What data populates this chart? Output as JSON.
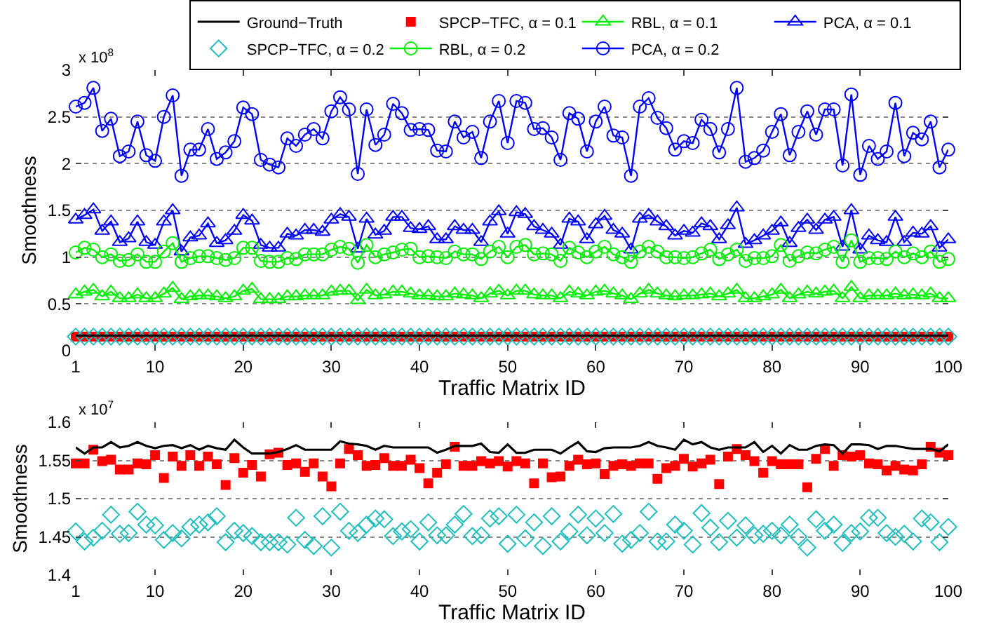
{
  "chart_data": [
    {
      "type": "line",
      "xlabel": "Traffic Matrix ID",
      "ylabel": "Smoothness",
      "annotations": [
        "x 10$^{8}$"
      ],
      "grid": "y",
      "legend": "top",
      "x": [
        1,
        2,
        3,
        4,
        5,
        6,
        7,
        8,
        9,
        10,
        11,
        12,
        13,
        14,
        15,
        16,
        17,
        18,
        19,
        20,
        21,
        22,
        23,
        24,
        25,
        26,
        27,
        28,
        29,
        30,
        31,
        32,
        33,
        34,
        35,
        36,
        37,
        38,
        39,
        40,
        41,
        42,
        43,
        44,
        45,
        46,
        47,
        48,
        49,
        50,
        51,
        52,
        53,
        54,
        55,
        56,
        57,
        58,
        59,
        60,
        61,
        62,
        63,
        64,
        65,
        66,
        67,
        68,
        69,
        70,
        71,
        72,
        73,
        74,
        75,
        76,
        77,
        78,
        79,
        80,
        81,
        82,
        83,
        84,
        85,
        86,
        87,
        88,
        89,
        90,
        91,
        92,
        93,
        94,
        95,
        96,
        97,
        98,
        99,
        100
      ],
      "xlim": [
        1,
        100
      ],
      "xticks": [
        1,
        10,
        20,
        30,
        40,
        50,
        60,
        70,
        80,
        90,
        100
      ],
      "ylim": [
        0,
        3
      ],
      "yticks": [
        0,
        0.5,
        1,
        1.5,
        2,
        2.5,
        3
      ],
      "series": [
        {
          "name": "Ground−Truth",
          "type": "line",
          "marker": "none",
          "color": "#000000",
          "values": [
            0.16,
            0.16,
            0.16,
            0.16,
            0.16,
            0.16,
            0.16,
            0.16,
            0.16,
            0.16,
            0.16,
            0.16,
            0.16,
            0.16,
            0.16,
            0.16,
            0.16,
            0.16,
            0.16,
            0.16,
            0.16,
            0.16,
            0.16,
            0.16,
            0.16,
            0.16,
            0.16,
            0.16,
            0.16,
            0.16,
            0.16,
            0.16,
            0.16,
            0.16,
            0.16,
            0.16,
            0.16,
            0.16,
            0.16,
            0.16,
            0.16,
            0.16,
            0.16,
            0.16,
            0.16,
            0.16,
            0.16,
            0.16,
            0.16,
            0.16,
            0.16,
            0.16,
            0.16,
            0.16,
            0.16,
            0.16,
            0.16,
            0.16,
            0.16,
            0.16,
            0.16,
            0.16,
            0.16,
            0.16,
            0.16,
            0.16,
            0.16,
            0.16,
            0.16,
            0.16,
            0.16,
            0.16,
            0.16,
            0.16,
            0.16,
            0.16,
            0.16,
            0.16,
            0.16,
            0.16,
            0.16,
            0.16,
            0.16,
            0.16,
            0.16,
            0.16,
            0.16,
            0.16,
            0.16,
            0.16,
            0.16,
            0.16,
            0.16,
            0.16,
            0.16,
            0.16,
            0.16,
            0.16,
            0.16,
            0.16
          ]
        },
        {
          "name": "SPCP−TFC, α = 0.1",
          "type": "scatter",
          "marker": "square",
          "color": "#ff0000",
          "values": [
            0.15,
            0.15,
            0.15,
            0.15,
            0.15,
            0.15,
            0.15,
            0.15,
            0.15,
            0.15,
            0.15,
            0.15,
            0.15,
            0.15,
            0.15,
            0.15,
            0.15,
            0.15,
            0.15,
            0.15,
            0.15,
            0.15,
            0.15,
            0.15,
            0.15,
            0.15,
            0.15,
            0.15,
            0.15,
            0.15,
            0.15,
            0.15,
            0.15,
            0.15,
            0.15,
            0.15,
            0.15,
            0.15,
            0.15,
            0.15,
            0.15,
            0.15,
            0.15,
            0.15,
            0.15,
            0.15,
            0.15,
            0.15,
            0.15,
            0.15,
            0.15,
            0.15,
            0.15,
            0.15,
            0.15,
            0.15,
            0.15,
            0.15,
            0.15,
            0.15,
            0.15,
            0.15,
            0.15,
            0.15,
            0.15,
            0.15,
            0.15,
            0.15,
            0.15,
            0.15,
            0.15,
            0.15,
            0.15,
            0.15,
            0.15,
            0.15,
            0.15,
            0.15,
            0.15,
            0.15,
            0.15,
            0.15,
            0.15,
            0.15,
            0.15,
            0.15,
            0.15,
            0.15,
            0.15,
            0.15,
            0.15,
            0.15,
            0.15,
            0.15,
            0.15,
            0.15,
            0.15,
            0.15,
            0.15,
            0.15
          ]
        },
        {
          "name": "RBL, α = 0.1",
          "type": "line",
          "marker": "triangle",
          "color": "#00ee00",
          "values": [
            0.6,
            0.63,
            0.65,
            0.58,
            0.63,
            0.56,
            0.56,
            0.6,
            0.56,
            0.56,
            0.61,
            0.67,
            0.55,
            0.58,
            0.59,
            0.59,
            0.58,
            0.56,
            0.58,
            0.64,
            0.66,
            0.55,
            0.55,
            0.55,
            0.58,
            0.58,
            0.59,
            0.59,
            0.59,
            0.63,
            0.64,
            0.64,
            0.54,
            0.65,
            0.59,
            0.6,
            0.63,
            0.63,
            0.61,
            0.59,
            0.59,
            0.58,
            0.58,
            0.61,
            0.6,
            0.59,
            0.56,
            0.61,
            0.64,
            0.59,
            0.64,
            0.64,
            0.6,
            0.59,
            0.59,
            0.56,
            0.63,
            0.61,
            0.59,
            0.63,
            0.64,
            0.61,
            0.59,
            0.55,
            0.61,
            0.65,
            0.61,
            0.59,
            0.58,
            0.59,
            0.59,
            0.6,
            0.61,
            0.58,
            0.61,
            0.65,
            0.56,
            0.56,
            0.58,
            0.6,
            0.65,
            0.56,
            0.6,
            0.63,
            0.61,
            0.63,
            0.64,
            0.56,
            0.68,
            0.56,
            0.59,
            0.59,
            0.59,
            0.61,
            0.59,
            0.6,
            0.59,
            0.61,
            0.56,
            0.56
          ]
        },
        {
          "name": "PCA, α = 0.1",
          "type": "line",
          "marker": "triangle",
          "color": "#0000ff",
          "values": [
            1.4,
            1.45,
            1.51,
            1.28,
            1.38,
            1.16,
            1.2,
            1.38,
            1.16,
            1.13,
            1.38,
            1.5,
            1.06,
            1.21,
            1.23,
            1.36,
            1.15,
            1.18,
            1.28,
            1.45,
            1.39,
            1.13,
            1.1,
            1.1,
            1.25,
            1.23,
            1.29,
            1.29,
            1.27,
            1.4,
            1.46,
            1.43,
            1.09,
            1.41,
            1.24,
            1.28,
            1.43,
            1.43,
            1.31,
            1.3,
            1.33,
            1.19,
            1.19,
            1.33,
            1.29,
            1.29,
            1.16,
            1.38,
            1.49,
            1.25,
            1.48,
            1.46,
            1.33,
            1.29,
            1.25,
            1.13,
            1.41,
            1.38,
            1.19,
            1.35,
            1.44,
            1.29,
            1.25,
            1.08,
            1.41,
            1.45,
            1.38,
            1.33,
            1.23,
            1.28,
            1.26,
            1.36,
            1.33,
            1.19,
            1.34,
            1.53,
            1.14,
            1.18,
            1.23,
            1.28,
            1.37,
            1.15,
            1.31,
            1.4,
            1.29,
            1.4,
            1.43,
            1.11,
            1.5,
            1.08,
            1.23,
            1.18,
            1.16,
            1.43,
            1.16,
            1.26,
            1.25,
            1.33,
            1.1,
            1.19
          ]
        },
        {
          "name": "SPCP−TFC, α = 0.2",
          "type": "scatter",
          "marker": "diamond",
          "color": "#1fbfbf",
          "values": [
            0.15,
            0.15,
            0.15,
            0.15,
            0.15,
            0.15,
            0.15,
            0.15,
            0.15,
            0.15,
            0.15,
            0.15,
            0.15,
            0.15,
            0.15,
            0.15,
            0.15,
            0.15,
            0.15,
            0.15,
            0.15,
            0.15,
            0.15,
            0.15,
            0.15,
            0.15,
            0.15,
            0.15,
            0.15,
            0.15,
            0.15,
            0.15,
            0.15,
            0.15,
            0.15,
            0.15,
            0.15,
            0.15,
            0.15,
            0.15,
            0.15,
            0.15,
            0.15,
            0.15,
            0.15,
            0.15,
            0.15,
            0.15,
            0.15,
            0.15,
            0.15,
            0.15,
            0.15,
            0.15,
            0.15,
            0.15,
            0.15,
            0.15,
            0.15,
            0.15,
            0.15,
            0.15,
            0.15,
            0.15,
            0.15,
            0.15,
            0.15,
            0.15,
            0.15,
            0.15,
            0.15,
            0.15,
            0.15,
            0.15,
            0.15,
            0.15,
            0.15,
            0.15,
            0.15,
            0.15,
            0.15,
            0.15,
            0.15,
            0.15,
            0.15,
            0.15,
            0.15,
            0.15,
            0.15,
            0.15,
            0.15,
            0.15,
            0.15,
            0.15,
            0.15,
            0.15,
            0.15,
            0.15,
            0.15,
            0.15
          ]
        },
        {
          "name": "RBL, α = 0.2",
          "type": "line",
          "marker": "circle",
          "color": "#00ee00",
          "values": [
            1.05,
            1.1,
            1.08,
            1.0,
            1.03,
            0.96,
            0.97,
            1.03,
            0.95,
            0.95,
            1.06,
            1.15,
            0.95,
            0.99,
            1.01,
            1.01,
            0.99,
            0.97,
            0.99,
            1.1,
            1.1,
            0.96,
            0.95,
            0.95,
            0.99,
            0.98,
            1.03,
            1.03,
            1.03,
            1.08,
            1.11,
            1.09,
            0.94,
            1.13,
            1.0,
            1.03,
            1.05,
            1.08,
            1.09,
            1.0,
            1.01,
            1.0,
            0.99,
            1.06,
            1.03,
            1.03,
            0.98,
            1.06,
            1.11,
            1.0,
            1.11,
            1.13,
            1.03,
            1.04,
            1.03,
            0.96,
            1.1,
            1.05,
            1.0,
            1.06,
            1.11,
            1.03,
            1.0,
            0.95,
            1.06,
            1.11,
            1.06,
            1.0,
            1.0,
            0.99,
            1.0,
            1.04,
            1.08,
            0.98,
            1.03,
            1.08,
            0.96,
            0.99,
            0.99,
            1.01,
            1.13,
            0.96,
            1.01,
            1.05,
            1.04,
            1.08,
            1.11,
            0.95,
            1.18,
            0.95,
            0.99,
            0.99,
            0.98,
            1.06,
            1.0,
            1.04,
            1.0,
            1.06,
            0.95,
            0.98
          ]
        },
        {
          "name": "PCA, α = 0.2",
          "type": "line",
          "marker": "circle",
          "color": "#0000ff",
          "values": [
            2.61,
            2.65,
            2.81,
            2.35,
            2.48,
            2.08,
            2.13,
            2.45,
            2.09,
            2.03,
            2.5,
            2.73,
            1.87,
            2.15,
            2.15,
            2.37,
            2.05,
            2.12,
            2.24,
            2.6,
            2.53,
            2.04,
            1.99,
            1.96,
            2.27,
            2.19,
            2.31,
            2.37,
            2.27,
            2.56,
            2.71,
            2.58,
            1.89,
            2.58,
            2.2,
            2.31,
            2.64,
            2.54,
            2.36,
            2.37,
            2.36,
            2.14,
            2.13,
            2.45,
            2.28,
            2.34,
            2.06,
            2.45,
            2.67,
            2.22,
            2.67,
            2.65,
            2.37,
            2.38,
            2.28,
            2.04,
            2.54,
            2.48,
            2.13,
            2.45,
            2.61,
            2.3,
            2.28,
            1.87,
            2.61,
            2.7,
            2.49,
            2.38,
            2.15,
            2.24,
            2.22,
            2.47,
            2.37,
            2.12,
            2.37,
            2.81,
            2.02,
            2.06,
            2.14,
            2.34,
            2.53,
            2.09,
            2.34,
            2.56,
            2.31,
            2.58,
            2.58,
            1.98,
            2.74,
            1.88,
            2.19,
            2.05,
            2.13,
            2.65,
            2.08,
            2.33,
            2.26,
            2.45,
            1.96,
            2.15
          ]
        }
      ]
    },
    {
      "type": "line",
      "xlabel": "Traffic Matrix ID",
      "ylabel": "Smoothness",
      "annotations": [
        "x 10$^{7}$"
      ],
      "grid": "y",
      "legend": false,
      "x": [
        1,
        2,
        3,
        4,
        5,
        6,
        7,
        8,
        9,
        10,
        11,
        12,
        13,
        14,
        15,
        16,
        17,
        18,
        19,
        20,
        21,
        22,
        23,
        24,
        25,
        26,
        27,
        28,
        29,
        30,
        31,
        32,
        33,
        34,
        35,
        36,
        37,
        38,
        39,
        40,
        41,
        42,
        43,
        44,
        45,
        46,
        47,
        48,
        49,
        50,
        51,
        52,
        53,
        54,
        55,
        56,
        57,
        58,
        59,
        60,
        61,
        62,
        63,
        64,
        65,
        66,
        67,
        68,
        69,
        70,
        71,
        72,
        73,
        74,
        75,
        76,
        77,
        78,
        79,
        80,
        81,
        82,
        83,
        84,
        85,
        86,
        87,
        88,
        89,
        90,
        91,
        92,
        93,
        94,
        95,
        96,
        97,
        98,
        99,
        100
      ],
      "xlim": [
        1,
        100
      ],
      "xticks": [
        1,
        10,
        20,
        30,
        40,
        50,
        60,
        70,
        80,
        90,
        100
      ],
      "ylim": [
        1.4,
        1.6
      ],
      "yticks": [
        1.4,
        1.45,
        1.5,
        1.55,
        1.6
      ],
      "series": [
        {
          "type": "line",
          "marker": "none",
          "color": "#000000",
          "values": [
            1.567,
            1.559,
            1.567,
            1.567,
            1.574,
            1.567,
            1.569,
            1.574,
            1.569,
            1.566,
            1.569,
            1.57,
            1.566,
            1.57,
            1.564,
            1.569,
            1.566,
            1.564,
            1.577,
            1.567,
            1.559,
            1.559,
            1.559,
            1.561,
            1.565,
            1.57,
            1.564,
            1.564,
            1.564,
            1.564,
            1.575,
            1.572,
            1.571,
            1.569,
            1.564,
            1.569,
            1.567,
            1.567,
            1.567,
            1.567,
            1.567,
            1.56,
            1.564,
            1.569,
            1.569,
            1.569,
            1.572,
            1.561,
            1.56,
            1.571,
            1.56,
            1.56,
            1.564,
            1.564,
            1.564,
            1.559,
            1.567,
            1.574,
            1.562,
            1.561,
            1.566,
            1.567,
            1.567,
            1.567,
            1.569,
            1.574,
            1.569,
            1.567,
            1.564,
            1.577,
            1.571,
            1.574,
            1.567,
            1.564,
            1.567,
            1.567,
            1.567,
            1.574,
            1.561,
            1.569,
            1.559,
            1.57,
            1.564,
            1.564,
            1.569,
            1.571,
            1.57,
            1.559,
            1.571,
            1.571,
            1.57,
            1.565,
            1.569,
            1.569,
            1.567,
            1.565,
            1.565,
            1.565,
            1.562,
            1.571
          ]
        },
        {
          "type": "scatter",
          "marker": "square",
          "color": "#ff0000",
          "values": [
            1.546,
            1.546,
            1.564,
            1.549,
            1.551,
            1.538,
            1.538,
            1.546,
            1.545,
            1.557,
            1.527,
            1.555,
            1.543,
            1.557,
            1.543,
            1.555,
            1.545,
            1.518,
            1.553,
            1.534,
            1.544,
            1.529,
            1.558,
            1.56,
            1.544,
            1.546,
            1.535,
            1.546,
            1.529,
            1.516,
            1.546,
            1.565,
            1.557,
            1.543,
            1.544,
            1.553,
            1.543,
            1.543,
            1.551,
            1.54,
            1.52,
            1.534,
            1.545,
            1.568,
            1.543,
            1.543,
            1.549,
            1.546,
            1.549,
            1.542,
            1.549,
            1.546,
            1.52,
            1.546,
            1.528,
            1.529,
            1.543,
            1.551,
            1.545,
            1.546,
            1.532,
            1.543,
            1.545,
            1.543,
            1.546,
            1.546,
            1.526,
            1.54,
            1.543,
            1.552,
            1.542,
            1.546,
            1.551,
            1.519,
            1.555,
            1.565,
            1.557,
            1.549,
            1.534,
            1.549,
            1.545,
            1.545,
            1.545,
            1.515,
            1.552,
            1.565,
            1.543,
            1.557,
            1.555,
            1.557,
            1.546,
            1.545,
            1.537,
            1.543,
            1.538,
            1.537,
            1.545,
            1.568,
            1.56,
            1.557
          ]
        },
        {
          "type": "scatter",
          "marker": "diamond",
          "color": "#1fbfbf",
          "values": [
            1.457,
            1.444,
            1.449,
            1.458,
            1.479,
            1.454,
            1.455,
            1.483,
            1.466,
            1.465,
            1.446,
            1.455,
            1.448,
            1.463,
            1.466,
            1.469,
            1.477,
            1.443,
            1.458,
            1.455,
            1.451,
            1.443,
            1.443,
            1.443,
            1.44,
            1.475,
            1.446,
            1.438,
            1.477,
            1.436,
            1.483,
            1.458,
            1.455,
            1.466,
            1.474,
            1.473,
            1.451,
            1.457,
            1.46,
            1.444,
            1.469,
            1.452,
            1.452,
            1.466,
            1.48,
            1.451,
            1.452,
            1.474,
            1.477,
            1.441,
            1.479,
            1.448,
            1.469,
            1.438,
            1.477,
            1.444,
            1.457,
            1.479,
            1.452,
            1.474,
            1.455,
            1.48,
            1.441,
            1.446,
            1.455,
            1.483,
            1.444,
            1.444,
            1.466,
            1.458,
            1.44,
            1.481,
            1.462,
            1.443,
            1.471,
            1.449,
            1.465,
            1.452,
            1.454,
            1.458,
            1.452,
            1.466,
            1.45,
            1.436,
            1.473,
            1.458,
            1.466,
            1.442,
            1.455,
            1.457,
            1.475,
            1.475,
            1.455,
            1.45,
            1.454,
            1.444,
            1.474,
            1.469,
            1.443,
            1.463
          ]
        }
      ]
    }
  ]
}
